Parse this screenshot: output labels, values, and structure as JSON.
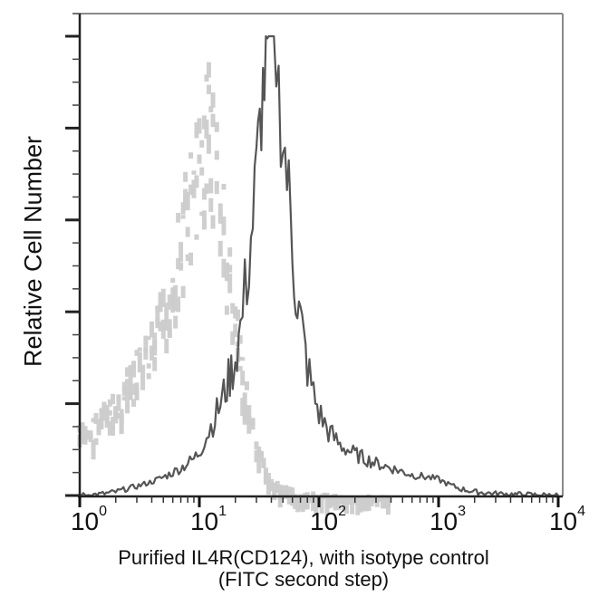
{
  "chart_data": {
    "type": "area",
    "title": "",
    "xlabel": "Purified IL4R(CD124), with isotype control",
    "xlabel_line2": "(FITC second step)",
    "ylabel": "Relative Cell Number",
    "xscale": "log",
    "xlim": [
      1,
      10000
    ],
    "ylim": [
      0,
      100
    ],
    "x_ticks": [
      {
        "base": "10",
        "exp": "0",
        "value": 1
      },
      {
        "base": "10",
        "exp": "1",
        "value": 10
      },
      {
        "base": "10",
        "exp": "2",
        "value": 100
      },
      {
        "base": "10",
        "exp": "3",
        "value": 1000
      },
      {
        "base": "10",
        "exp": "4",
        "value": 10000
      }
    ],
    "y_major_ticks": [
      0,
      20,
      40,
      60,
      80,
      100
    ],
    "y_tick_labels_shown": false,
    "grid": false,
    "legend": null,
    "series": [
      {
        "name": "Isotype control",
        "color": "#cccccc",
        "style": "light gray, dotted/blocky histogram",
        "x": [
          1,
          1.3,
          1.6,
          2,
          2.5,
          3,
          4,
          5,
          6,
          7,
          8,
          9,
          10,
          11,
          12,
          13,
          14,
          15,
          16,
          17,
          18,
          20,
          22,
          24,
          26,
          28,
          30,
          33,
          36,
          40,
          45,
          50,
          60,
          70,
          80,
          100,
          130,
          200,
          400,
          1000,
          10000
        ],
        "values": [
          16,
          18,
          21,
          23,
          28,
          32,
          38,
          47,
          56,
          66,
          74,
          80,
          86,
          90,
          99,
          92,
          85,
          78,
          70,
          60,
          55,
          45,
          36,
          28,
          22,
          17,
          12,
          10,
          7,
          5,
          3.5,
          2.5,
          1.8,
          1.2,
          1.0,
          0.8,
          0.5,
          0.4,
          0.3,
          0.2,
          0
        ]
      },
      {
        "name": "Purified IL4R(CD124)",
        "color": "#555555",
        "style": "dark gray line histogram",
        "x": [
          1,
          1.5,
          2,
          2.5,
          3,
          4,
          5,
          6,
          7,
          8,
          9,
          10,
          11,
          12,
          13,
          14,
          15,
          16,
          17,
          18,
          19,
          20,
          22,
          24,
          26,
          28,
          30,
          32,
          34,
          36,
          38,
          40,
          42,
          44,
          46,
          48,
          50,
          54,
          58,
          62,
          66,
          70,
          80,
          90,
          100,
          120,
          150,
          200,
          300,
          400,
          600,
          800,
          1000,
          1200,
          1500,
          2000,
          3000,
          5000,
          10000
        ],
        "values": [
          0,
          0.3,
          0.8,
          1.5,
          2,
          3,
          4,
          5,
          6,
          7,
          8,
          9.5,
          12,
          14,
          16,
          18,
          20,
          22,
          24,
          26,
          28,
          30,
          36,
          44,
          52,
          60,
          70,
          80,
          88,
          94,
          99,
          100,
          92,
          96,
          88,
          82,
          78,
          70,
          60,
          50,
          42,
          38,
          28,
          22,
          18,
          14,
          11,
          9,
          7,
          6,
          4.5,
          4,
          3.5,
          2.5,
          1.5,
          0.8,
          0.4,
          0.2,
          0
        ]
      }
    ]
  },
  "labels": {
    "ylabel": "Relative Cell Number",
    "xlabel_line1": "Purified IL4R(CD124), with isotype control",
    "xlabel_line2": "(FITC second step)",
    "xticks": [
      {
        "base": "10",
        "exp": "0"
      },
      {
        "base": "10",
        "exp": "1"
      },
      {
        "base": "10",
        "exp": "2"
      },
      {
        "base": "10",
        "exp": "3"
      },
      {
        "base": "10",
        "exp": "4"
      }
    ]
  },
  "colors": {
    "isotype": "#cccccc",
    "sample": "#555555",
    "axis": "#111111",
    "frame": "#777777"
  }
}
